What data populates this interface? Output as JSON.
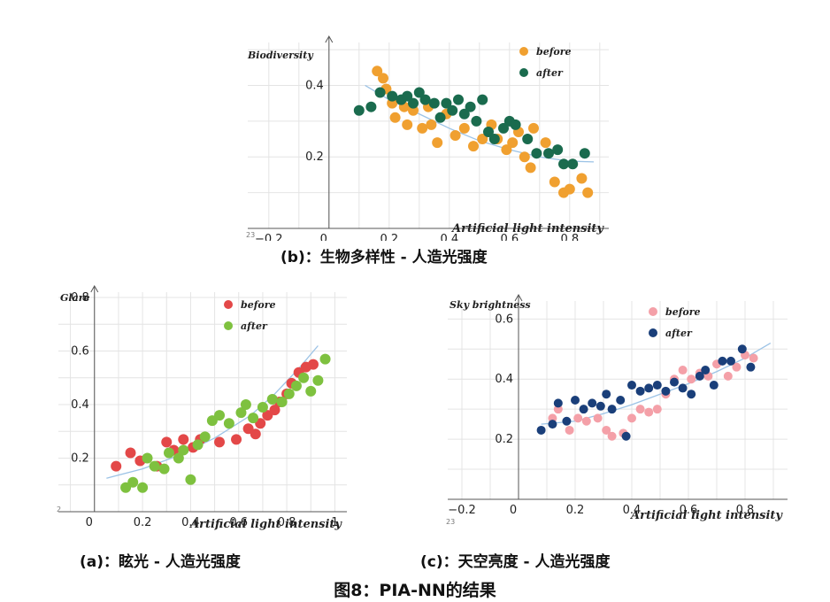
{
  "chart_data": [
    {
      "id": "b",
      "type": "scatter",
      "caption": "(b)：生物多样性 - 人造光强度",
      "ylabel": "Biodiversity",
      "xlabel": "Artificial light intensity",
      "corner_label": "23",
      "x_ticks": [
        "−0.2",
        "0",
        "0.2",
        "0.4",
        "0.6",
        "0.8"
      ],
      "y_ticks": [
        "0.2",
        "0.4"
      ],
      "xlim": [
        -0.27,
        0.93
      ],
      "ylim": [
        0.0,
        0.52
      ],
      "grid": true,
      "legend_position": "top-right",
      "series": [
        {
          "name": "before",
          "color": "#f0a030",
          "points": [
            [
              0.16,
              0.44
            ],
            [
              0.18,
              0.42
            ],
            [
              0.19,
              0.39
            ],
            [
              0.21,
              0.35
            ],
            [
              0.22,
              0.31
            ],
            [
              0.25,
              0.34
            ],
            [
              0.26,
              0.29
            ],
            [
              0.28,
              0.33
            ],
            [
              0.31,
              0.28
            ],
            [
              0.33,
              0.34
            ],
            [
              0.34,
              0.29
            ],
            [
              0.36,
              0.24
            ],
            [
              0.39,
              0.32
            ],
            [
              0.42,
              0.26
            ],
            [
              0.45,
              0.28
            ],
            [
              0.48,
              0.23
            ],
            [
              0.51,
              0.25
            ],
            [
              0.54,
              0.29
            ],
            [
              0.56,
              0.25
            ],
            [
              0.59,
              0.22
            ],
            [
              0.61,
              0.24
            ],
            [
              0.63,
              0.27
            ],
            [
              0.65,
              0.2
            ],
            [
              0.67,
              0.17
            ],
            [
              0.68,
              0.28
            ],
            [
              0.72,
              0.24
            ],
            [
              0.75,
              0.13
            ],
            [
              0.78,
              0.1
            ],
            [
              0.8,
              0.11
            ],
            [
              0.84,
              0.14
            ],
            [
              0.86,
              0.1
            ]
          ]
        },
        {
          "name": "after",
          "color": "#1a6b4e",
          "points": [
            [
              0.1,
              0.33
            ],
            [
              0.14,
              0.34
            ],
            [
              0.17,
              0.38
            ],
            [
              0.21,
              0.37
            ],
            [
              0.24,
              0.36
            ],
            [
              0.26,
              0.37
            ],
            [
              0.28,
              0.35
            ],
            [
              0.3,
              0.38
            ],
            [
              0.32,
              0.36
            ],
            [
              0.35,
              0.35
            ],
            [
              0.37,
              0.31
            ],
            [
              0.39,
              0.35
            ],
            [
              0.41,
              0.33
            ],
            [
              0.43,
              0.36
            ],
            [
              0.45,
              0.32
            ],
            [
              0.47,
              0.34
            ],
            [
              0.49,
              0.3
            ],
            [
              0.51,
              0.36
            ],
            [
              0.53,
              0.27
            ],
            [
              0.55,
              0.25
            ],
            [
              0.58,
              0.28
            ],
            [
              0.6,
              0.3
            ],
            [
              0.62,
              0.29
            ],
            [
              0.66,
              0.25
            ],
            [
              0.69,
              0.21
            ],
            [
              0.73,
              0.21
            ],
            [
              0.76,
              0.22
            ],
            [
              0.78,
              0.18
            ],
            [
              0.81,
              0.18
            ],
            [
              0.85,
              0.21
            ]
          ]
        }
      ],
      "fit": [
        [
          0.12,
          0.4
        ],
        [
          0.2,
          0.36
        ],
        [
          0.3,
          0.32
        ],
        [
          0.4,
          0.28
        ],
        [
          0.5,
          0.245
        ],
        [
          0.6,
          0.22
        ],
        [
          0.7,
          0.2
        ],
        [
          0.8,
          0.188
        ],
        [
          0.88,
          0.186
        ]
      ]
    },
    {
      "id": "a",
      "type": "scatter",
      "caption": "(a)：眩光 - 人造光强度",
      "ylabel": "Glare",
      "xlabel": "Artificial light intensity",
      "corner_label": "2",
      "x_ticks": [
        "0",
        "0.2",
        "0.4",
        "0.6",
        "0.8",
        "1"
      ],
      "y_ticks": [
        "0.2",
        "0.4",
        "0.6",
        "0.8"
      ],
      "xlim": [
        -0.15,
        1.05
      ],
      "ylim": [
        0.0,
        0.82
      ],
      "grid": true,
      "legend_position": "top-right",
      "series": [
        {
          "name": "before",
          "color": "#e34848",
          "points": [
            [
              0.09,
              0.17
            ],
            [
              0.15,
              0.22
            ],
            [
              0.19,
              0.19
            ],
            [
              0.26,
              0.17
            ],
            [
              0.3,
              0.26
            ],
            [
              0.33,
              0.23
            ],
            [
              0.37,
              0.27
            ],
            [
              0.41,
              0.24
            ],
            [
              0.44,
              0.27
            ],
            [
              0.52,
              0.26
            ],
            [
              0.59,
              0.27
            ],
            [
              0.64,
              0.31
            ],
            [
              0.67,
              0.29
            ],
            [
              0.69,
              0.33
            ],
            [
              0.72,
              0.36
            ],
            [
              0.75,
              0.38
            ],
            [
              0.77,
              0.41
            ],
            [
              0.8,
              0.44
            ],
            [
              0.82,
              0.48
            ],
            [
              0.85,
              0.52
            ],
            [
              0.88,
              0.54
            ],
            [
              0.91,
              0.55
            ]
          ]
        },
        {
          "name": "after",
          "color": "#7ec13f",
          "points": [
            [
              0.13,
              0.09
            ],
            [
              0.16,
              0.11
            ],
            [
              0.2,
              0.09
            ],
            [
              0.22,
              0.2
            ],
            [
              0.25,
              0.17
            ],
            [
              0.29,
              0.16
            ],
            [
              0.31,
              0.22
            ],
            [
              0.35,
              0.2
            ],
            [
              0.37,
              0.23
            ],
            [
              0.4,
              0.12
            ],
            [
              0.43,
              0.25
            ],
            [
              0.46,
              0.28
            ],
            [
              0.49,
              0.34
            ],
            [
              0.52,
              0.36
            ],
            [
              0.56,
              0.33
            ],
            [
              0.61,
              0.37
            ],
            [
              0.63,
              0.4
            ],
            [
              0.66,
              0.35
            ],
            [
              0.7,
              0.39
            ],
            [
              0.74,
              0.42
            ],
            [
              0.78,
              0.41
            ],
            [
              0.81,
              0.44
            ],
            [
              0.84,
              0.47
            ],
            [
              0.87,
              0.5
            ],
            [
              0.9,
              0.45
            ],
            [
              0.93,
              0.49
            ],
            [
              0.96,
              0.57
            ]
          ]
        }
      ],
      "fit": [
        [
          0.05,
          0.125
        ],
        [
          0.2,
          0.16
        ],
        [
          0.35,
          0.21
        ],
        [
          0.5,
          0.275
        ],
        [
          0.65,
          0.36
        ],
        [
          0.75,
          0.44
        ],
        [
          0.85,
          0.535
        ],
        [
          0.93,
          0.62
        ]
      ]
    },
    {
      "id": "c",
      "type": "scatter",
      "caption": "(c)：天空亮度 - 人造光强度",
      "ylabel": "Sky  brightness",
      "xlabel": "Artificial light intensity",
      "corner_label": "23",
      "x_ticks": [
        "−0.2",
        "0",
        "0.2",
        "0.4",
        "0.6",
        "0.8"
      ],
      "y_ticks": [
        "0.2",
        "0.4",
        "0.6"
      ],
      "xlim": [
        -0.25,
        0.95
      ],
      "ylim": [
        0.0,
        0.66
      ],
      "grid": true,
      "legend_position": "top-right",
      "series": [
        {
          "name": "before",
          "color": "#f4a0a8",
          "points": [
            [
              0.12,
              0.27
            ],
            [
              0.14,
              0.3
            ],
            [
              0.18,
              0.23
            ],
            [
              0.21,
              0.27
            ],
            [
              0.24,
              0.26
            ],
            [
              0.28,
              0.27
            ],
            [
              0.31,
              0.23
            ],
            [
              0.33,
              0.21
            ],
            [
              0.37,
              0.22
            ],
            [
              0.4,
              0.27
            ],
            [
              0.43,
              0.3
            ],
            [
              0.46,
              0.29
            ],
            [
              0.49,
              0.3
            ],
            [
              0.52,
              0.35
            ],
            [
              0.55,
              0.4
            ],
            [
              0.58,
              0.43
            ],
            [
              0.61,
              0.4
            ],
            [
              0.64,
              0.42
            ],
            [
              0.67,
              0.41
            ],
            [
              0.7,
              0.45
            ],
            [
              0.74,
              0.41
            ],
            [
              0.77,
              0.44
            ],
            [
              0.8,
              0.48
            ],
            [
              0.83,
              0.47
            ]
          ]
        },
        {
          "name": "after",
          "color": "#1a3f7a",
          "points": [
            [
              0.08,
              0.23
            ],
            [
              0.12,
              0.25
            ],
            [
              0.14,
              0.32
            ],
            [
              0.17,
              0.26
            ],
            [
              0.2,
              0.33
            ],
            [
              0.23,
              0.3
            ],
            [
              0.26,
              0.32
            ],
            [
              0.29,
              0.31
            ],
            [
              0.31,
              0.35
            ],
            [
              0.33,
              0.3
            ],
            [
              0.36,
              0.33
            ],
            [
              0.38,
              0.21
            ],
            [
              0.4,
              0.38
            ],
            [
              0.43,
              0.36
            ],
            [
              0.46,
              0.37
            ],
            [
              0.49,
              0.38
            ],
            [
              0.52,
              0.36
            ],
            [
              0.55,
              0.39
            ],
            [
              0.58,
              0.37
            ],
            [
              0.61,
              0.35
            ],
            [
              0.64,
              0.41
            ],
            [
              0.66,
              0.43
            ],
            [
              0.69,
              0.38
            ],
            [
              0.72,
              0.46
            ],
            [
              0.75,
              0.46
            ],
            [
              0.79,
              0.5
            ],
            [
              0.82,
              0.44
            ]
          ]
        }
      ],
      "fit": [
        [
          0.08,
          0.25
        ],
        [
          0.2,
          0.26
        ],
        [
          0.3,
          0.285
        ],
        [
          0.4,
          0.315
        ],
        [
          0.5,
          0.35
        ],
        [
          0.6,
          0.385
        ],
        [
          0.7,
          0.425
        ],
        [
          0.8,
          0.47
        ],
        [
          0.89,
          0.52
        ]
      ]
    }
  ],
  "figure_caption": "图8：PIA-NN的结果"
}
